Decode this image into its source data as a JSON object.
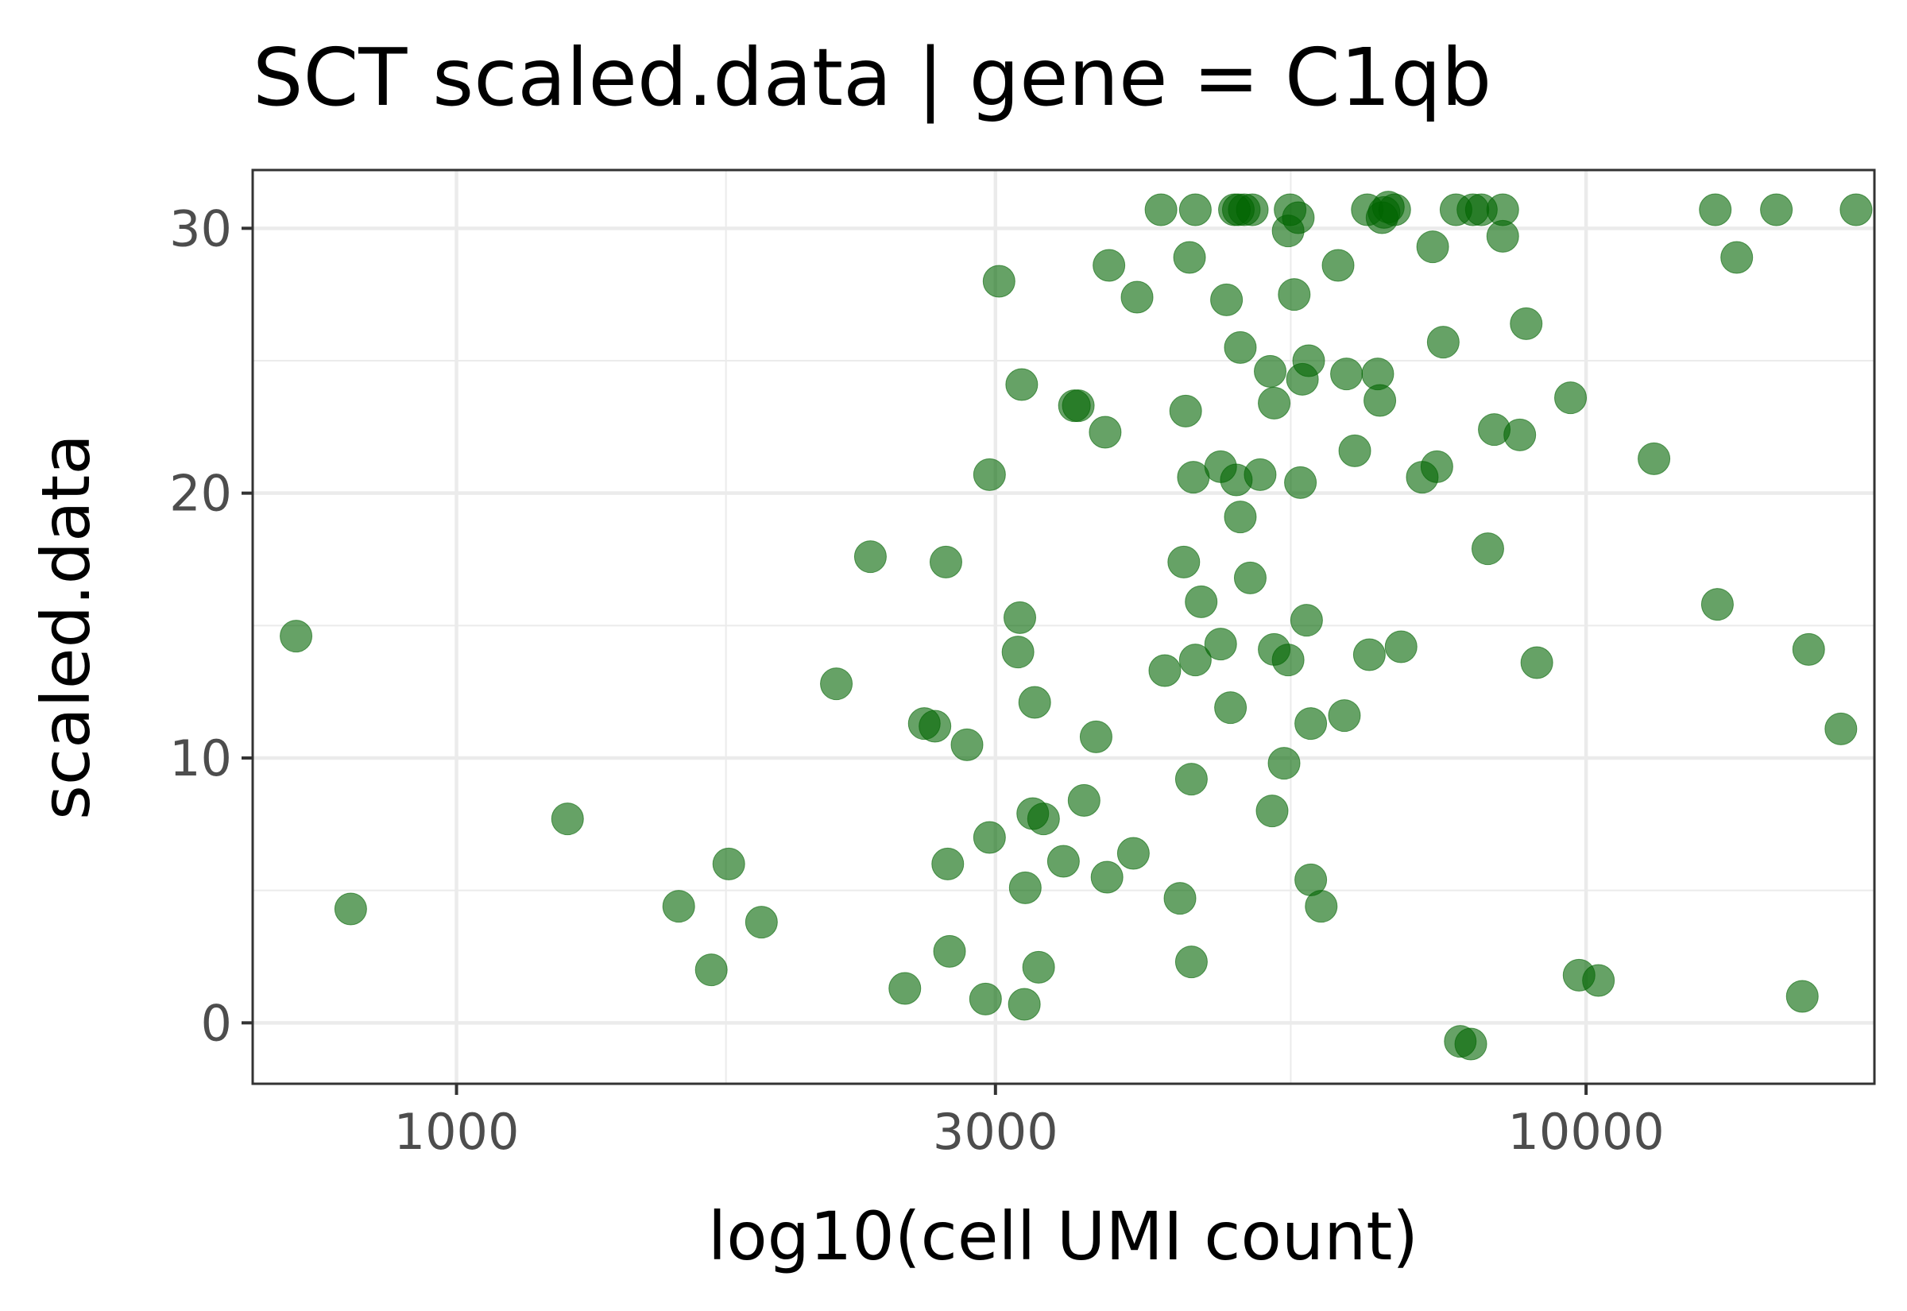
{
  "chart_data": {
    "type": "scatter",
    "title": "SCT scaled.data | gene = C1qb",
    "xlabel": "log10(cell UMI count)",
    "ylabel": "scaled.data",
    "x_scale": "log10",
    "xlim": [
      660,
      18000
    ],
    "ylim": [
      -2.3,
      32.2
    ],
    "x_ticks": [
      1000,
      3000,
      10000
    ],
    "x_tick_labels": [
      "1000",
      "3000",
      "10000"
    ],
    "x_minor_ticks": [
      1732,
      5477
    ],
    "y_ticks": [
      0,
      10,
      20,
      30
    ],
    "y_tick_labels": [
      "0",
      "10",
      "20",
      "30"
    ],
    "y_minor_ticks": [
      5,
      15,
      25
    ],
    "grid": true,
    "legend": "none",
    "point_color": "#006400",
    "points": [
      {
        "x": 721,
        "y": 14.6
      },
      {
        "x": 806,
        "y": 4.3
      },
      {
        "x": 1254,
        "y": 7.7
      },
      {
        "x": 1573,
        "y": 4.4
      },
      {
        "x": 1681,
        "y": 2.0
      },
      {
        "x": 1742,
        "y": 6.0
      },
      {
        "x": 1862,
        "y": 3.8
      },
      {
        "x": 2169,
        "y": 12.8
      },
      {
        "x": 2325,
        "y": 17.6
      },
      {
        "x": 2494,
        "y": 1.3
      },
      {
        "x": 2595,
        "y": 11.3
      },
      {
        "x": 2652,
        "y": 11.2
      },
      {
        "x": 2712,
        "y": 17.4
      },
      {
        "x": 2722,
        "y": 6.0
      },
      {
        "x": 2732,
        "y": 2.7
      },
      {
        "x": 2831,
        "y": 10.5
      },
      {
        "x": 2940,
        "y": 0.9
      },
      {
        "x": 2964,
        "y": 20.7
      },
      {
        "x": 2964,
        "y": 7.0
      },
      {
        "x": 3022,
        "y": 28.0
      },
      {
        "x": 3141,
        "y": 14.0
      },
      {
        "x": 3153,
        "y": 15.3
      },
      {
        "x": 3165,
        "y": 24.1
      },
      {
        "x": 3182,
        "y": 0.7
      },
      {
        "x": 3188,
        "y": 5.1
      },
      {
        "x": 3237,
        "y": 7.9
      },
      {
        "x": 3250,
        "y": 12.1
      },
      {
        "x": 3276,
        "y": 2.1
      },
      {
        "x": 3309,
        "y": 7.7
      },
      {
        "x": 3446,
        "y": 6.1
      },
      {
        "x": 3524,
        "y": 23.3
      },
      {
        "x": 3552,
        "y": 23.3
      },
      {
        "x": 3594,
        "y": 8.4
      },
      {
        "x": 3683,
        "y": 10.8
      },
      {
        "x": 3752,
        "y": 22.3
      },
      {
        "x": 3766,
        "y": 5.5
      },
      {
        "x": 3781,
        "y": 28.6
      },
      {
        "x": 4004,
        "y": 27.4
      },
      {
        "x": 3974,
        "y": 6.4
      },
      {
        "x": 4204,
        "y": 30.7
      },
      {
        "x": 4237,
        "y": 13.3
      },
      {
        "x": 4370,
        "y": 4.7
      },
      {
        "x": 4404,
        "y": 17.4
      },
      {
        "x": 4421,
        "y": 23.1
      },
      {
        "x": 4456,
        "y": 28.9
      },
      {
        "x": 4473,
        "y": 9.2
      },
      {
        "x": 4473,
        "y": 2.3
      },
      {
        "x": 4491,
        "y": 20.6
      },
      {
        "x": 4509,
        "y": 30.7
      },
      {
        "x": 4509,
        "y": 13.7
      },
      {
        "x": 4563,
        "y": 15.9
      },
      {
        "x": 4748,
        "y": 14.3
      },
      {
        "x": 4748,
        "y": 21.0
      },
      {
        "x": 4805,
        "y": 27.3
      },
      {
        "x": 4844,
        "y": 11.9
      },
      {
        "x": 4883,
        "y": 30.7
      },
      {
        "x": 4902,
        "y": 20.5
      },
      {
        "x": 4922,
        "y": 30.7
      },
      {
        "x": 4942,
        "y": 25.5
      },
      {
        "x": 4942,
        "y": 19.1
      },
      {
        "x": 4982,
        "y": 30.7
      },
      {
        "x": 5043,
        "y": 16.8
      },
      {
        "x": 5064,
        "y": 30.7
      },
      {
        "x": 5146,
        "y": 20.7
      },
      {
        "x": 5252,
        "y": 24.6
      },
      {
        "x": 5273,
        "y": 8.0
      },
      {
        "x": 5295,
        "y": 14.1
      },
      {
        "x": 5295,
        "y": 23.4
      },
      {
        "x": 5403,
        "y": 9.8
      },
      {
        "x": 5448,
        "y": 13.7
      },
      {
        "x": 5448,
        "y": 29.9
      },
      {
        "x": 5470,
        "y": 30.7
      },
      {
        "x": 5516,
        "y": 27.5
      },
      {
        "x": 5562,
        "y": 30.4
      },
      {
        "x": 5586,
        "y": 20.4
      },
      {
        "x": 5609,
        "y": 24.3
      },
      {
        "x": 5657,
        "y": 15.2
      },
      {
        "x": 5681,
        "y": 25.0
      },
      {
        "x": 5705,
        "y": 11.3
      },
      {
        "x": 5705,
        "y": 5.4
      },
      {
        "x": 5828,
        "y": 4.4
      },
      {
        "x": 6032,
        "y": 28.6
      },
      {
        "x": 6110,
        "y": 11.6
      },
      {
        "x": 6136,
        "y": 24.5
      },
      {
        "x": 6241,
        "y": 21.6
      },
      {
        "x": 6402,
        "y": 30.7
      },
      {
        "x": 6429,
        "y": 13.9
      },
      {
        "x": 6540,
        "y": 24.5
      },
      {
        "x": 6568,
        "y": 23.5
      },
      {
        "x": 6597,
        "y": 30.4
      },
      {
        "x": 6625,
        "y": 30.6
      },
      {
        "x": 6683,
        "y": 30.8
      },
      {
        "x": 6770,
        "y": 30.7
      },
      {
        "x": 6858,
        "y": 14.2
      },
      {
        "x": 7161,
        "y": 20.6
      },
      {
        "x": 7315,
        "y": 29.3
      },
      {
        "x": 7378,
        "y": 21.0
      },
      {
        "x": 7474,
        "y": 25.7
      },
      {
        "x": 7671,
        "y": 30.7
      },
      {
        "x": 7738,
        "y": -0.7
      },
      {
        "x": 7906,
        "y": -0.8
      },
      {
        "x": 7940,
        "y": 30.7
      },
      {
        "x": 8078,
        "y": 30.7
      },
      {
        "x": 8185,
        "y": 17.9
      },
      {
        "x": 8293,
        "y": 22.4
      },
      {
        "x": 8438,
        "y": 30.7
      },
      {
        "x": 8438,
        "y": 29.7
      },
      {
        "x": 8736,
        "y": 22.2
      },
      {
        "x": 8851,
        "y": 26.4
      },
      {
        "x": 9045,
        "y": 13.6
      },
      {
        "x": 9688,
        "y": 23.6
      },
      {
        "x": 9858,
        "y": 1.8
      },
      {
        "x": 10255,
        "y": 1.6
      },
      {
        "x": 11485,
        "y": 21.3
      },
      {
        "x": 13013,
        "y": 30.7
      },
      {
        "x": 13070,
        "y": 15.8
      },
      {
        "x": 13595,
        "y": 28.9
      },
      {
        "x": 14739,
        "y": 30.7
      },
      {
        "x": 15539,
        "y": 1.0
      },
      {
        "x": 15742,
        "y": 14.1
      },
      {
        "x": 16811,
        "y": 11.1
      },
      {
        "x": 17339,
        "y": 30.7
      }
    ]
  }
}
